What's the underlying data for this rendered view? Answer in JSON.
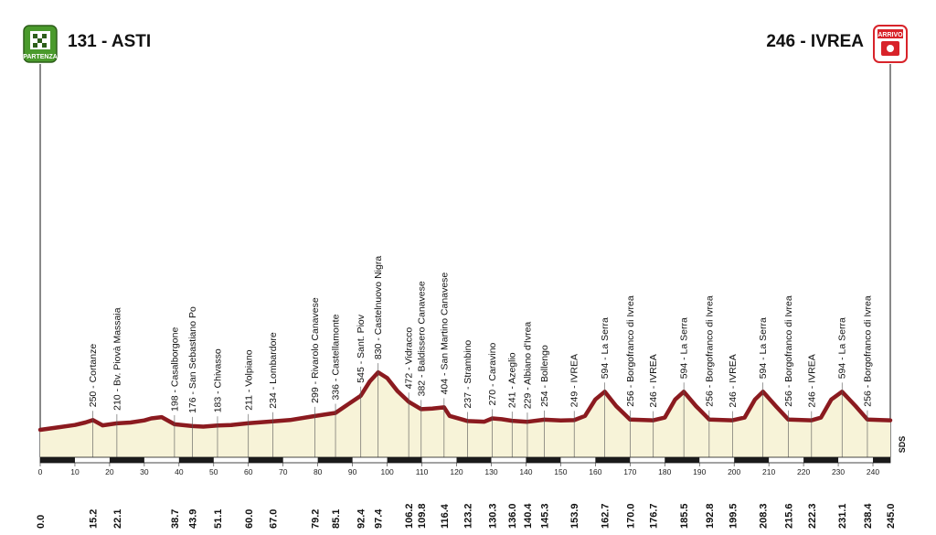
{
  "header": {
    "start_label": "131 - ASTI",
    "end_label": "246 - IVREA",
    "start_badge": "PARTENZA",
    "end_badge": "ARRIVO"
  },
  "brand": {
    "sds": "SDS"
  },
  "colors": {
    "profile_line": "#8b1a1f",
    "profile_fill": "#f7f3d8",
    "start_badge": "#4a9a2c",
    "end_badge": "#d8232a",
    "scale_bar": "#1a1a1a"
  },
  "chart_data": {
    "type": "area",
    "xlabel": "",
    "ylabel": "",
    "xlim": [
      0,
      245
    ],
    "ylim": [
      0,
      3000
    ],
    "x_ticks": [
      0,
      10,
      20,
      30,
      40,
      50,
      60,
      70,
      80,
      90,
      100,
      110,
      120,
      130,
      140,
      150,
      160,
      170,
      180,
      190,
      200,
      210,
      220,
      230,
      240
    ],
    "profile": [
      [
        0,
        131
      ],
      [
        5,
        160
      ],
      [
        10,
        190
      ],
      [
        13,
        220
      ],
      [
        15.2,
        250
      ],
      [
        18,
        185
      ],
      [
        22.1,
        210
      ],
      [
        26,
        220
      ],
      [
        30,
        245
      ],
      [
        32,
        270
      ],
      [
        35,
        285
      ],
      [
        38.7,
        198
      ],
      [
        43.9,
        176
      ],
      [
        47,
        170
      ],
      [
        51.1,
        183
      ],
      [
        55,
        188
      ],
      [
        60,
        211
      ],
      [
        67,
        234
      ],
      [
        72,
        250
      ],
      [
        79.2,
        299
      ],
      [
        85.1,
        336
      ],
      [
        88,
        420
      ],
      [
        92.4,
        545
      ],
      [
        95,
        720
      ],
      [
        97.4,
        830
      ],
      [
        100,
        760
      ],
      [
        103,
        600
      ],
      [
        106.2,
        472
      ],
      [
        109.8,
        382
      ],
      [
        113,
        390
      ],
      [
        116.4,
        404
      ],
      [
        118,
        300
      ],
      [
        123.2,
        237
      ],
      [
        128,
        230
      ],
      [
        130.3,
        270
      ],
      [
        133,
        260
      ],
      [
        136,
        241
      ],
      [
        140.4,
        229
      ],
      [
        145.3,
        254
      ],
      [
        150,
        245
      ],
      [
        153.9,
        249
      ],
      [
        157,
        300
      ],
      [
        160,
        500
      ],
      [
        162.7,
        594
      ],
      [
        166,
        420
      ],
      [
        170,
        256
      ],
      [
        176.7,
        246
      ],
      [
        180,
        280
      ],
      [
        183,
        500
      ],
      [
        185.5,
        594
      ],
      [
        189,
        420
      ],
      [
        192.8,
        256
      ],
      [
        199.5,
        246
      ],
      [
        203,
        280
      ],
      [
        206,
        500
      ],
      [
        208.3,
        594
      ],
      [
        212,
        420
      ],
      [
        215.6,
        256
      ],
      [
        222.3,
        246
      ],
      [
        225,
        280
      ],
      [
        228,
        500
      ],
      [
        231.1,
        594
      ],
      [
        235,
        420
      ],
      [
        238.4,
        256
      ],
      [
        242,
        250
      ],
      [
        245,
        246
      ]
    ],
    "waypoints": [
      {
        "km": 15.2,
        "label": "250 - Cortanze"
      },
      {
        "km": 22.1,
        "label": "210 - Bv. Piovà Massaia"
      },
      {
        "km": 38.7,
        "label": "198 - Casalborgone"
      },
      {
        "km": 43.9,
        "label": "176 - San Sebastiano Po"
      },
      {
        "km": 51.1,
        "label": "183 - Chivasso"
      },
      {
        "km": 60.0,
        "label": "211 - Volpiano"
      },
      {
        "km": 67.0,
        "label": "234 - Lombardore"
      },
      {
        "km": 79.2,
        "label": "299 - Rivarolo Canavese"
      },
      {
        "km": 85.1,
        "label": "336 - Castellamonte"
      },
      {
        "km": 92.4,
        "label": "545 - Sant. Piov"
      },
      {
        "km": 97.4,
        "label": "830 - Castelnuovo Nigra"
      },
      {
        "km": 106.2,
        "label": "472 - Vidracco"
      },
      {
        "km": 109.8,
        "label": "382 - Baldissero Canavese"
      },
      {
        "km": 116.4,
        "label": "404 - San Martino Canavese"
      },
      {
        "km": 123.2,
        "label": "237 - Strambino"
      },
      {
        "km": 130.3,
        "label": "270 - Caravino"
      },
      {
        "km": 136.0,
        "label": "241 - Azeglio"
      },
      {
        "km": 140.4,
        "label": "229 - Albiano d'Ivrea"
      },
      {
        "km": 145.3,
        "label": "254 - Bollengo"
      },
      {
        "km": 153.9,
        "label": "249 - IVREA"
      },
      {
        "km": 162.7,
        "label": "594 - La Serra"
      },
      {
        "km": 170.0,
        "label": "256 - Borgofranco di Ivrea"
      },
      {
        "km": 176.7,
        "label": "246 - IVREA"
      },
      {
        "km": 185.5,
        "label": "594 - La Serra"
      },
      {
        "km": 192.8,
        "label": "256 - Borgofranco di Ivrea"
      },
      {
        "km": 199.5,
        "label": "246 - IVREA"
      },
      {
        "km": 208.3,
        "label": "594 - La Serra"
      },
      {
        "km": 215.6,
        "label": "256 - Borgofranco di Ivrea"
      },
      {
        "km": 222.3,
        "label": "246 - IVREA"
      },
      {
        "km": 231.1,
        "label": "594 - La Serra"
      },
      {
        "km": 238.4,
        "label": "256 - Borgofranco di Ivrea"
      }
    ],
    "km_marks": [
      "0.0",
      "15.2",
      "22.1",
      "38.7",
      "43.9",
      "51.1",
      "60.0",
      "67.0",
      "79.2",
      "85.1",
      "92.4",
      "97.4",
      "106.2",
      "109.8",
      "116.4",
      "123.2",
      "130.3",
      "136.0",
      "140.4",
      "145.3",
      "153.9",
      "162.7",
      "170.0",
      "176.7",
      "185.5",
      "192.8",
      "199.5",
      "208.3",
      "215.6",
      "222.3",
      "231.1",
      "238.4",
      "245.0"
    ]
  }
}
